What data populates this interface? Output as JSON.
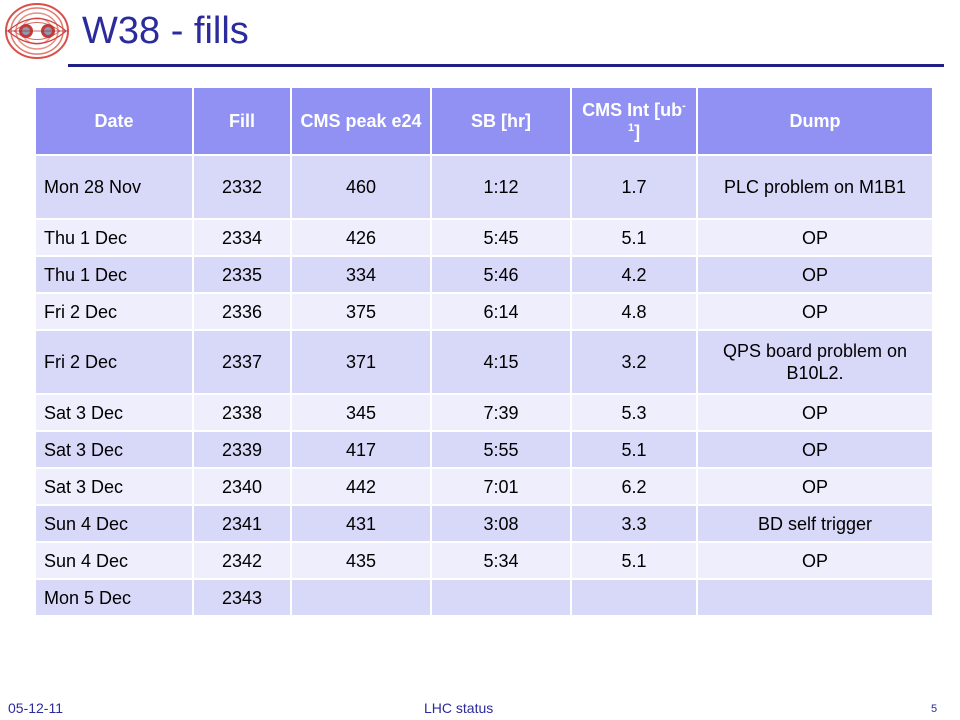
{
  "title": "W38 - fills",
  "table": {
    "headers": {
      "date": "Date",
      "fill": "Fill",
      "cms_peak": "CMS  peak e24",
      "sb": "SB [hr]",
      "cms_int_pre": "CMS Int [ub",
      "cms_int_sup": "-1",
      "cms_int_post": "]",
      "dump": "Dump"
    },
    "rows": [
      {
        "date": "Mon 28 Nov",
        "fill": "2332",
        "peak": "460",
        "sb": "1:12",
        "int": "1.7",
        "dump": "PLC problem on M1B1"
      },
      {
        "date": "Thu 1 Dec",
        "fill": "2334",
        "peak": "426",
        "sb": "5:45",
        "int": "5.1",
        "dump": "OP"
      },
      {
        "date": "Thu 1 Dec",
        "fill": "2335",
        "peak": "334",
        "sb": "5:46",
        "int": "4.2",
        "dump": "OP"
      },
      {
        "date": "Fri 2 Dec",
        "fill": "2336",
        "peak": "375",
        "sb": "6:14",
        "int": "4.8",
        "dump": "OP"
      },
      {
        "date": "Fri 2 Dec",
        "fill": "2337",
        "peak": "371",
        "sb": "4:15",
        "int": "3.2",
        "dump": "QPS board problem on B10L2."
      },
      {
        "date": "Sat 3 Dec",
        "fill": "2338",
        "peak": "345",
        "sb": "7:39",
        "int": "5.3",
        "dump": "OP"
      },
      {
        "date": "Sat 3 Dec",
        "fill": "2339",
        "peak": "417",
        "sb": "5:55",
        "int": "5.1",
        "dump": "OP"
      },
      {
        "date": "Sat 3 Dec",
        "fill": "2340",
        "peak": "442",
        "sb": "7:01",
        "int": "6.2",
        "dump": "OP"
      },
      {
        "date": "Sun 4 Dec",
        "fill": "2341",
        "peak": "431",
        "sb": "3:08",
        "int": "3.3",
        "dump": "BD self trigger"
      },
      {
        "date": "Sun 4 Dec",
        "fill": "2342",
        "peak": "435",
        "sb": "5:34",
        "int": "5.1",
        "dump": "OP"
      },
      {
        "date": "Mon 5 Dec",
        "fill": "2343",
        "peak": "",
        "sb": "",
        "int": "",
        "dump": ""
      }
    ]
  },
  "footer": {
    "date": "05-12-11",
    "center": "LHC status",
    "page": "5"
  },
  "colors": {
    "title": "#2b2b9c",
    "header_bg": "#9191f3",
    "row_odd": "#d8d8f8",
    "row_even": "#eeeefc"
  },
  "logo": {
    "icon": "lhc-dipole-field-logo"
  }
}
